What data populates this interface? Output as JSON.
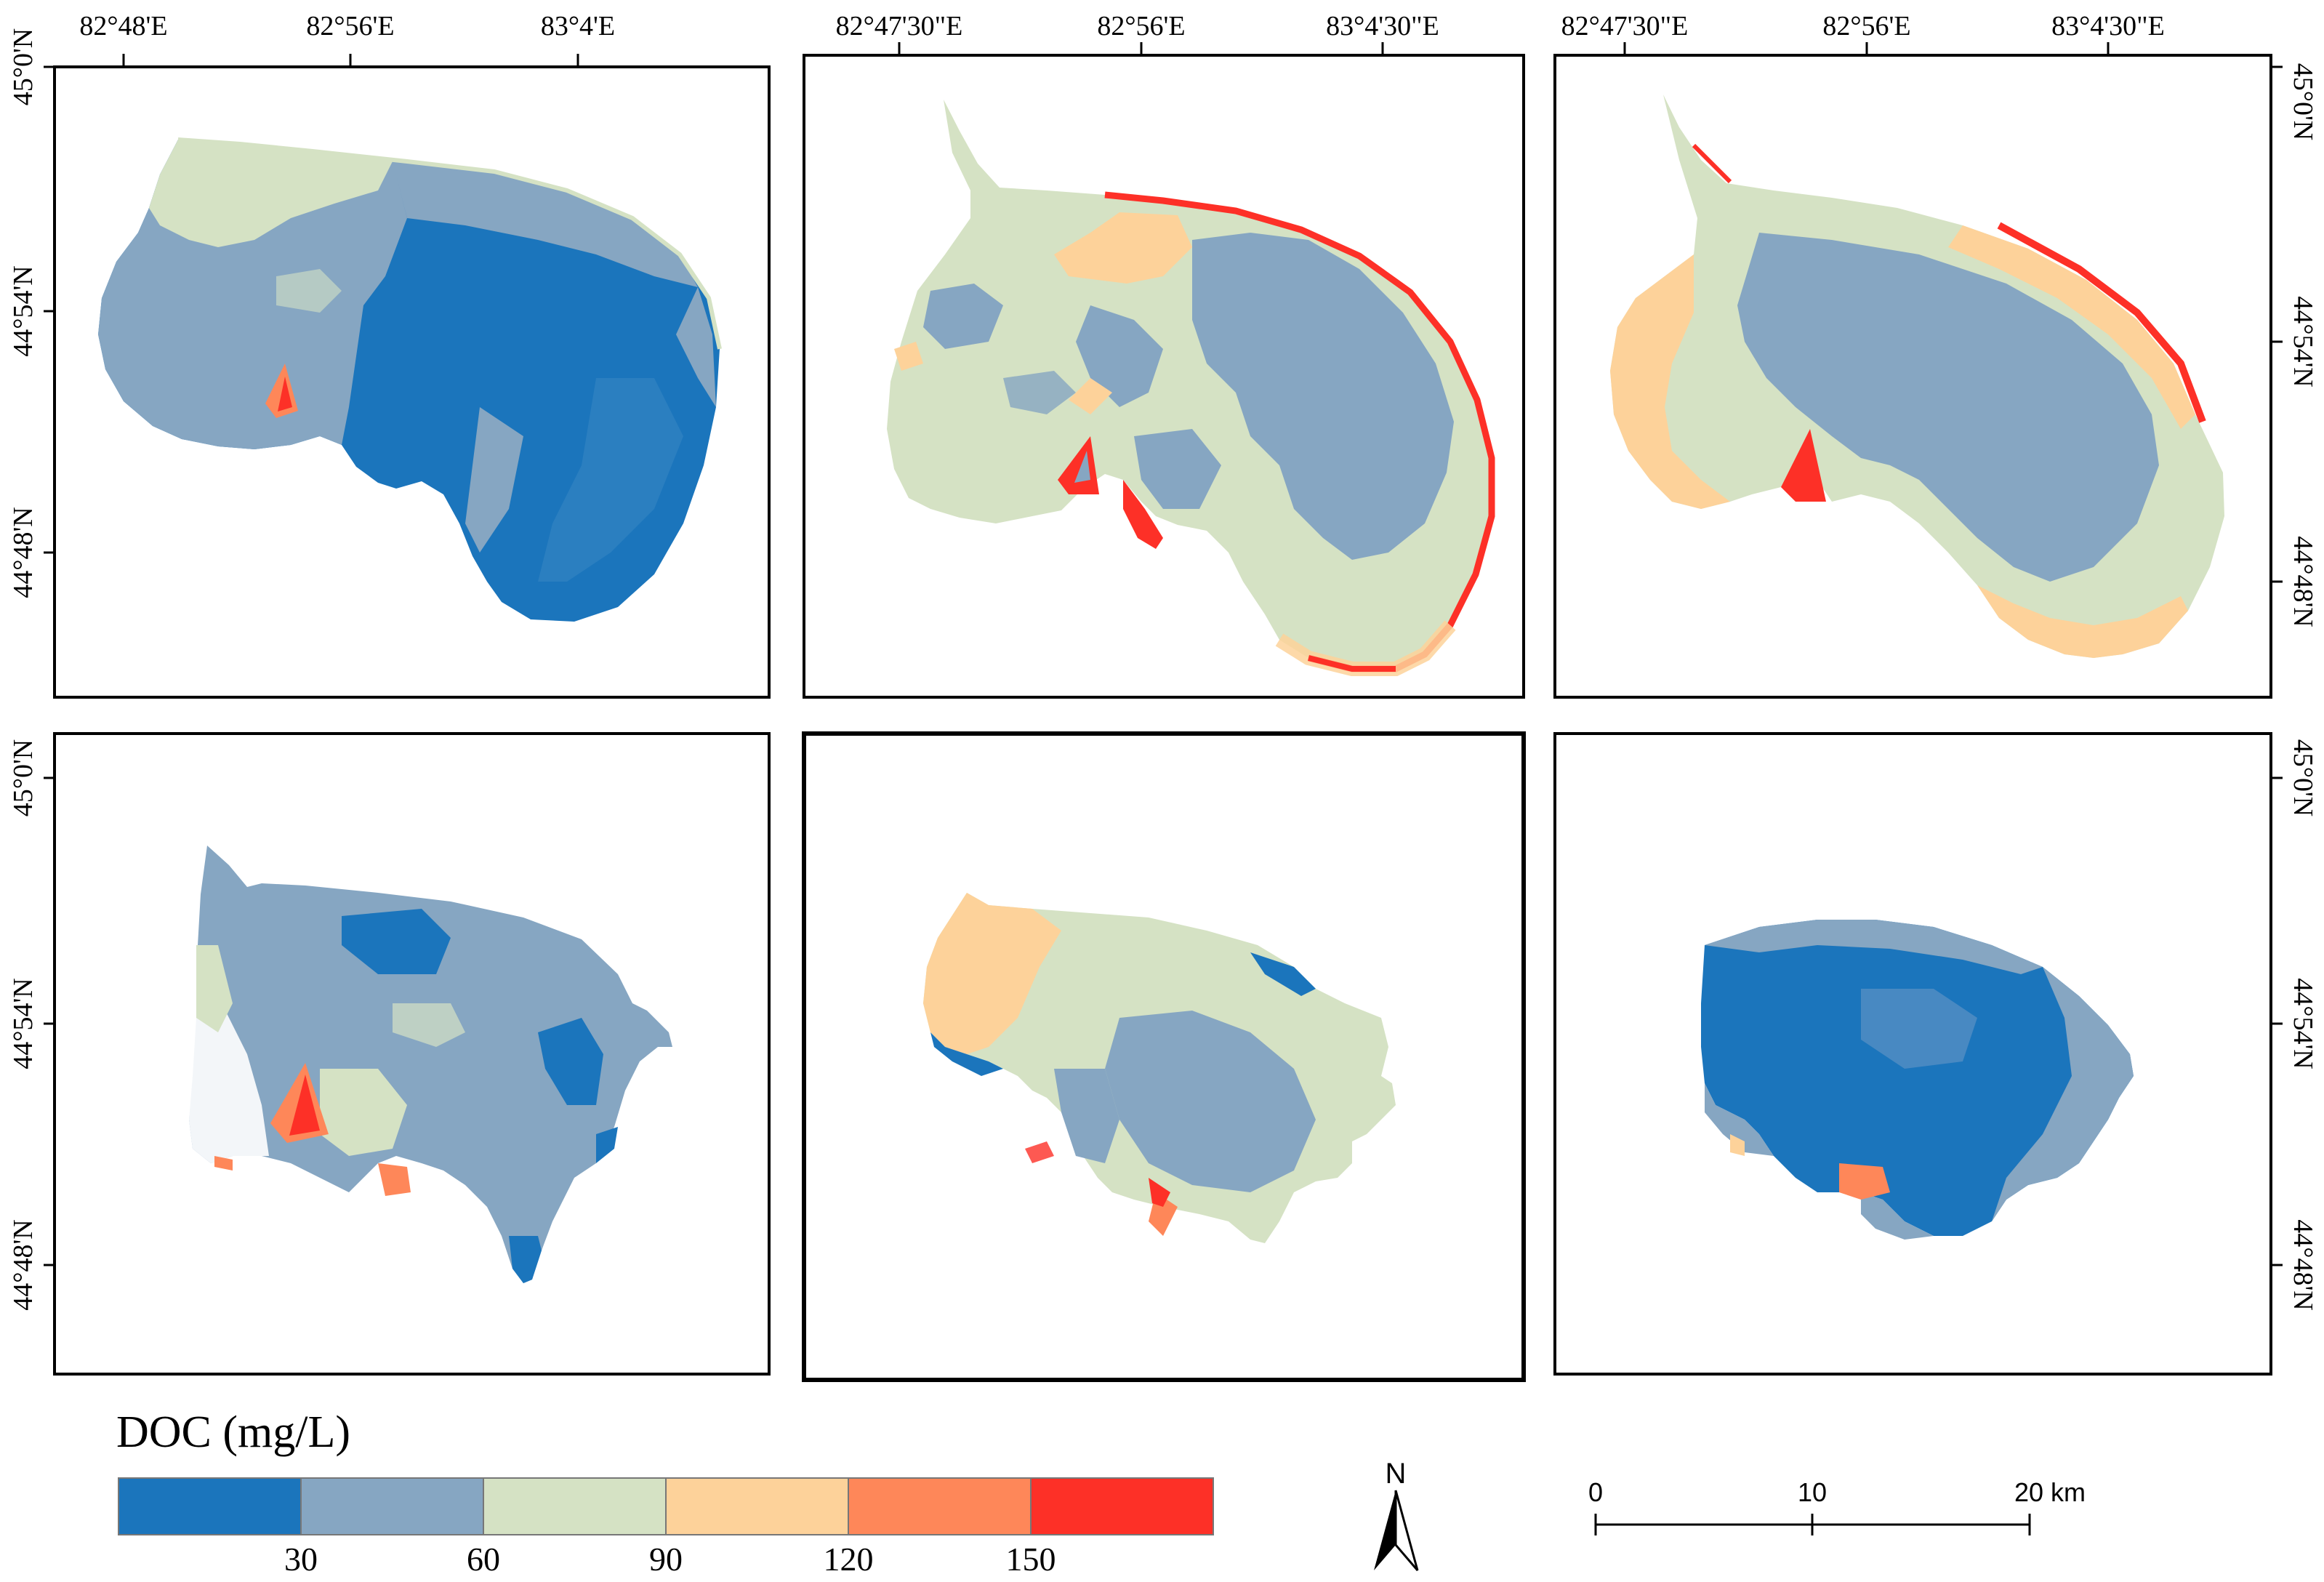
{
  "legend": {
    "title": "DOC (mg/L)",
    "colors": [
      "#1b75bc",
      "#86a6c2",
      "#d5e2c4",
      "#fdd29a",
      "#fe8759",
      "#fd3027"
    ],
    "breaks": [
      "30",
      "60",
      "90",
      "120",
      "150"
    ]
  },
  "north_arrow": {
    "label": "N"
  },
  "scale_bar": {
    "labels": [
      "0",
      "10",
      "20 km"
    ]
  },
  "axes": {
    "top_row1": [
      "82°48'E",
      "82°56'E",
      "83°4'E"
    ],
    "top_row2": [
      "82°47'30\"E",
      "82°56'E",
      "83°4'30\"E"
    ],
    "top_row3": [
      "82°47'30\"E",
      "82°56'E",
      "83°4'30\"E"
    ],
    "left_top": [
      "45°0'N",
      "44°54'N",
      "44°48'N"
    ],
    "left_bottom": [
      "45°0'N",
      "44°54'N",
      "44°48'N"
    ],
    "right_top": [
      "45°0'N",
      "44°54'N",
      "44°48'N"
    ],
    "right_bottom": [
      "45°0'N",
      "44°54'N",
      "44°48'N"
    ]
  },
  "panels": [
    {
      "id": "p1",
      "dominant": "#1b75bc"
    },
    {
      "id": "p2",
      "dominant": "#d5e2c4"
    },
    {
      "id": "p3",
      "dominant": "#d5e2c4"
    },
    {
      "id": "p4",
      "dominant": "#86a6c2"
    },
    {
      "id": "p5",
      "dominant": "#d5e2c4"
    },
    {
      "id": "p6",
      "dominant": "#1b75bc"
    }
  ]
}
